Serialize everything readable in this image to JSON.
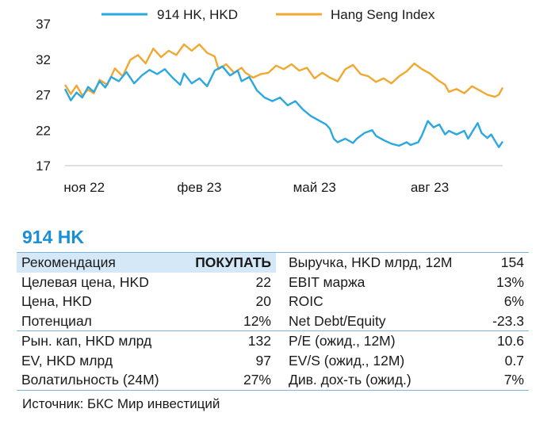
{
  "chart_data": {
    "type": "line",
    "ylim": [
      17,
      37
    ],
    "yticks": [
      17,
      22,
      27,
      32,
      37
    ],
    "xticks": [
      {
        "label": "ноя 22",
        "x": 0.5
      },
      {
        "label": "фев 23",
        "x": 3.5
      },
      {
        "label": "май 23",
        "x": 6.5
      },
      {
        "label": "авг 23",
        "x": 9.5
      }
    ],
    "xlim": [
      0,
      11.4
    ],
    "legend_position": "top",
    "series": [
      {
        "name": "914 HK, HKD",
        "color": "#2ba8e0",
        "points": [
          [
            0,
            27.8
          ],
          [
            0.15,
            26.2
          ],
          [
            0.3,
            27.3
          ],
          [
            0.45,
            26.6
          ],
          [
            0.6,
            28.1
          ],
          [
            0.75,
            27.4
          ],
          [
            0.9,
            28.9
          ],
          [
            1.05,
            28.0
          ],
          [
            1.2,
            29.5
          ],
          [
            1.4,
            28.9
          ],
          [
            1.6,
            30.2
          ],
          [
            1.8,
            28.6
          ],
          [
            2.0,
            29.7
          ],
          [
            2.2,
            30.5
          ],
          [
            2.4,
            29.9
          ],
          [
            2.6,
            30.6
          ],
          [
            2.8,
            29.4
          ],
          [
            3.0,
            28.4
          ],
          [
            3.1,
            30.0
          ],
          [
            3.3,
            28.6
          ],
          [
            3.5,
            29.3
          ],
          [
            3.7,
            28.2
          ],
          [
            3.9,
            30.4
          ],
          [
            4.1,
            31.0
          ],
          [
            4.3,
            29.7
          ],
          [
            4.5,
            30.4
          ],
          [
            4.6,
            28.9
          ],
          [
            4.8,
            29.5
          ],
          [
            5.0,
            27.6
          ],
          [
            5.2,
            26.6
          ],
          [
            5.4,
            26.1
          ],
          [
            5.6,
            26.6
          ],
          [
            5.8,
            25.5
          ],
          [
            6.0,
            26.1
          ],
          [
            6.2,
            24.9
          ],
          [
            6.4,
            24.0
          ],
          [
            6.6,
            23.4
          ],
          [
            6.8,
            22.8
          ],
          [
            6.9,
            22.2
          ],
          [
            7.0,
            20.8
          ],
          [
            7.1,
            20.3
          ],
          [
            7.3,
            20.8
          ],
          [
            7.5,
            20.2
          ],
          [
            7.6,
            20.8
          ],
          [
            7.8,
            21.6
          ],
          [
            8.0,
            22.0
          ],
          [
            8.1,
            21.2
          ],
          [
            8.3,
            20.6
          ],
          [
            8.5,
            20.1
          ],
          [
            8.7,
            19.8
          ],
          [
            8.9,
            20.3
          ],
          [
            9.0,
            19.9
          ],
          [
            9.2,
            20.3
          ],
          [
            9.3,
            21.3
          ],
          [
            9.45,
            23.3
          ],
          [
            9.6,
            22.4
          ],
          [
            9.75,
            22.8
          ],
          [
            9.9,
            21.4
          ],
          [
            10.0,
            21.9
          ],
          [
            10.2,
            21.4
          ],
          [
            10.4,
            21.9
          ],
          [
            10.5,
            20.8
          ],
          [
            10.6,
            21.7
          ],
          [
            10.75,
            23.0
          ],
          [
            10.85,
            21.6
          ],
          [
            11.0,
            20.9
          ],
          [
            11.1,
            21.4
          ],
          [
            11.2,
            20.5
          ],
          [
            11.3,
            19.6
          ],
          [
            11.4,
            20.4
          ]
        ]
      },
      {
        "name": "Hang Seng Index",
        "color": "#f0a830",
        "points": [
          [
            0,
            28.4
          ],
          [
            0.15,
            27.1
          ],
          [
            0.3,
            28.3
          ],
          [
            0.45,
            26.9
          ],
          [
            0.6,
            27.7
          ],
          [
            0.75,
            27.2
          ],
          [
            0.9,
            29.1
          ],
          [
            1.1,
            28.4
          ],
          [
            1.3,
            30.7
          ],
          [
            1.5,
            29.6
          ],
          [
            1.7,
            31.9
          ],
          [
            1.9,
            32.6
          ],
          [
            2.1,
            31.4
          ],
          [
            2.3,
            33.5
          ],
          [
            2.5,
            32.3
          ],
          [
            2.7,
            33.2
          ],
          [
            2.9,
            32.6
          ],
          [
            3.1,
            34.1
          ],
          [
            3.3,
            33.2
          ],
          [
            3.5,
            34.1
          ],
          [
            3.7,
            32.9
          ],
          [
            3.9,
            32.4
          ],
          [
            4.0,
            30.6
          ],
          [
            4.2,
            31.3
          ],
          [
            4.4,
            30.1
          ],
          [
            4.6,
            30.8
          ],
          [
            4.7,
            30.1
          ],
          [
            4.9,
            29.4
          ],
          [
            5.1,
            29.9
          ],
          [
            5.3,
            30.1
          ],
          [
            5.5,
            31.1
          ],
          [
            5.7,
            30.6
          ],
          [
            5.9,
            31.3
          ],
          [
            6.1,
            30.4
          ],
          [
            6.3,
            30.8
          ],
          [
            6.5,
            29.3
          ],
          [
            6.7,
            30.1
          ],
          [
            6.9,
            29.4
          ],
          [
            7.1,
            28.9
          ],
          [
            7.3,
            30.6
          ],
          [
            7.5,
            31.2
          ],
          [
            7.7,
            29.9
          ],
          [
            7.9,
            29.6
          ],
          [
            8.1,
            28.8
          ],
          [
            8.3,
            29.3
          ],
          [
            8.5,
            28.6
          ],
          [
            8.7,
            29.6
          ],
          [
            8.9,
            30.3
          ],
          [
            9.1,
            31.4
          ],
          [
            9.3,
            30.6
          ],
          [
            9.5,
            30.0
          ],
          [
            9.7,
            29.1
          ],
          [
            9.9,
            28.4
          ],
          [
            10.0,
            27.4
          ],
          [
            10.2,
            27.8
          ],
          [
            10.4,
            27.2
          ],
          [
            10.6,
            28.2
          ],
          [
            10.8,
            27.6
          ],
          [
            11.0,
            27.0
          ],
          [
            11.2,
            26.7
          ],
          [
            11.3,
            27.0
          ],
          [
            11.4,
            28.0
          ]
        ]
      }
    ]
  },
  "table": {
    "title": "914 HK",
    "rows": [
      {
        "l1": "Рекомендация",
        "v1": "ПОКУПАТЬ",
        "l2": "Выручка, HKD млрд, 12M",
        "v2": "154"
      },
      {
        "l1": "Целевая цена, HKD",
        "v1": "22",
        "l2": "EBIT маржа",
        "v2": "13%"
      },
      {
        "l1": "Цена, HKD",
        "v1": "20",
        "l2": "ROIC",
        "v2": "6%"
      },
      {
        "l1": "Потенциал",
        "v1": "12%",
        "l2": "Net Debt/Equity",
        "v2": "-23.3"
      },
      {
        "l1": "Рын. кап, HKD млрд",
        "v1": "132",
        "l2": "P/E (ожид., 12M)",
        "v2": "10.6"
      },
      {
        "l1": "EV, HKD млрд",
        "v1": "97",
        "l2": "EV/S (ожид., 12M)",
        "v2": "0.7"
      },
      {
        "l1": "Волатильность (24M)",
        "v1": "27%",
        "l2": "Див. дох-ть (ожид.)",
        "v2": "7%"
      }
    ]
  },
  "source": "Источник: БКС Мир инвестиций"
}
